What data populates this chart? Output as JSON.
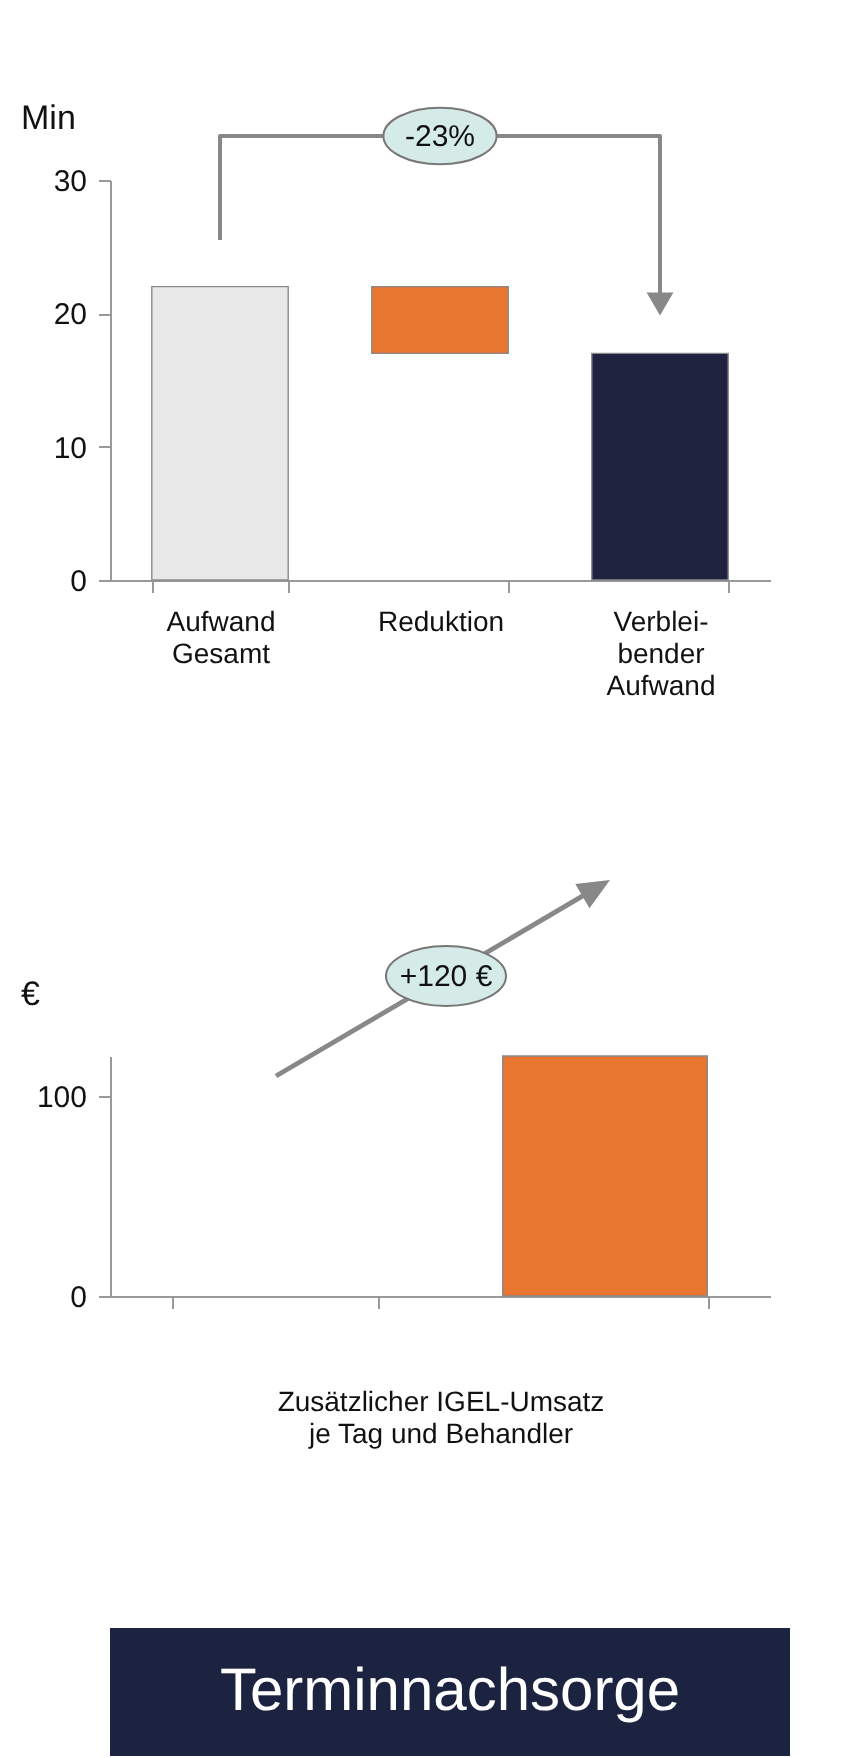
{
  "chart_data": [
    {
      "type": "bar",
      "ylabel": "Min",
      "categories": [
        "Aufwand\nGesamt",
        "Reduktion",
        "Verblei-\nbender\nAufwand"
      ],
      "values": [
        22,
        5,
        17
      ],
      "base": [
        0,
        17,
        0
      ],
      "colors": [
        "#e8e8e8",
        "#e87530",
        "#1f2340"
      ],
      "ylim": [
        0,
        30
      ],
      "yticks": [
        0,
        10,
        20,
        30
      ],
      "grid": false,
      "annotations": [
        "-23%"
      ]
    },
    {
      "type": "bar",
      "title": "Terminnachsorge",
      "ylabel": "€",
      "xlabel": "Zusätzlicher IGEL-Umsatz\nje Tag und Behandler",
      "categories": [
        null,
        null
      ],
      "values": [
        null,
        120
      ],
      "colors": [
        "#e87530",
        "#e87530"
      ],
      "ylim": [
        0,
        120
      ],
      "yticks": [
        0,
        100
      ],
      "grid": false,
      "annotations": [
        "+120 €"
      ]
    }
  ]
}
